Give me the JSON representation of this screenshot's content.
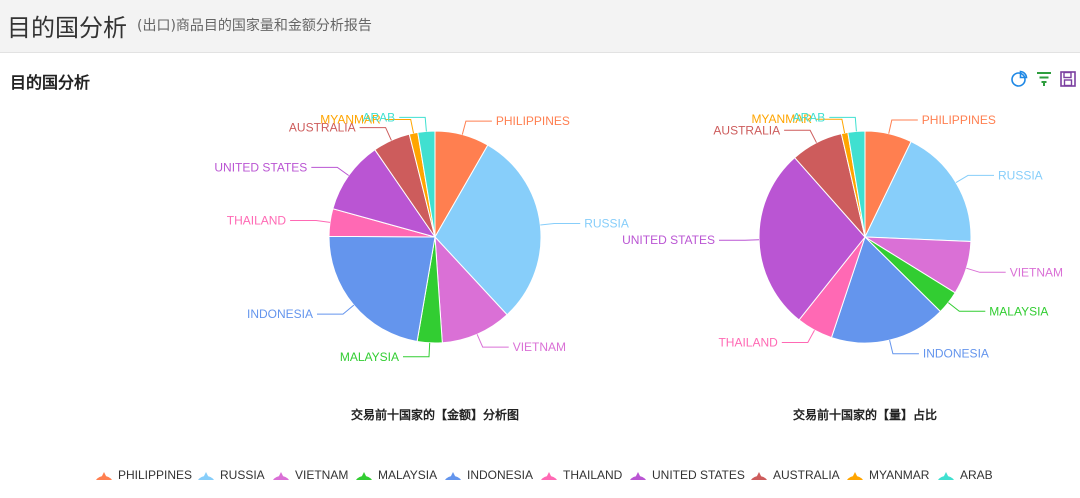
{
  "header": {
    "title": "目的国分析",
    "subtitle": "(出口)商品目的国家量和金额分析报告"
  },
  "section": {
    "title": "目的国分析"
  },
  "toolbar": {
    "icons": [
      "pie-chart-icon",
      "filter-icon",
      "save-icon"
    ],
    "icon_colors": [
      "#1e88e5",
      "#2e9e3e",
      "#7b3fa0"
    ]
  },
  "colors": {
    "PHILIPPINES": "#ff7f50",
    "RUSSIA": "#87cefa",
    "VIETNAM": "#da70d6",
    "MALAYSIA": "#32cd32",
    "INDONESIA": "#6495ed",
    "THAILAND": "#ff69b4",
    "UNITED STATES": "#ba55d3",
    "AUSTRALIA": "#cd5c5c",
    "MYANMAR": "#ffa500",
    "ARAB": "#40e0d0"
  },
  "legend": [
    "PHILIPPINES",
    "RUSSIA",
    "VIETNAM",
    "MALAYSIA",
    "INDONESIA",
    "THAILAND",
    "UNITED STATES",
    "AUSTRALIA",
    "MYANMAR",
    "ARAB"
  ],
  "chart_data": [
    {
      "type": "pie",
      "title": "交易前十国家的【金额】分析图",
      "unit": "share",
      "slices": [
        {
          "name": "PHILIPPINES",
          "value": 8.3
        },
        {
          "name": "RUSSIA",
          "value": 29.8
        },
        {
          "name": "VIETNAM",
          "value": 10.8
        },
        {
          "name": "MALAYSIA",
          "value": 3.8
        },
        {
          "name": "INDONESIA",
          "value": 22.4
        },
        {
          "name": "THAILAND",
          "value": 4.2
        },
        {
          "name": "UNITED STATES",
          "value": 11.1
        },
        {
          "name": "AUSTRALIA",
          "value": 5.7
        },
        {
          "name": "MYANMAR",
          "value": 1.3
        },
        {
          "name": "ARAB",
          "value": 2.6
        }
      ]
    },
    {
      "type": "pie",
      "title": "交易前十国家的【量】占比",
      "unit": "share",
      "slices": [
        {
          "name": "PHILIPPINES",
          "value": 7.2
        },
        {
          "name": "RUSSIA",
          "value": 18.6
        },
        {
          "name": "VIETNAM",
          "value": 8.2
        },
        {
          "name": "MALAYSIA",
          "value": 3.6
        },
        {
          "name": "INDONESIA",
          "value": 17.8
        },
        {
          "name": "THAILAND",
          "value": 5.6
        },
        {
          "name": "UNITED STATES",
          "value": 27.9
        },
        {
          "name": "AUSTRALIA",
          "value": 8.0
        },
        {
          "name": "MYANMAR",
          "value": 1.0
        },
        {
          "name": "ARAB",
          "value": 2.6
        }
      ]
    }
  ]
}
